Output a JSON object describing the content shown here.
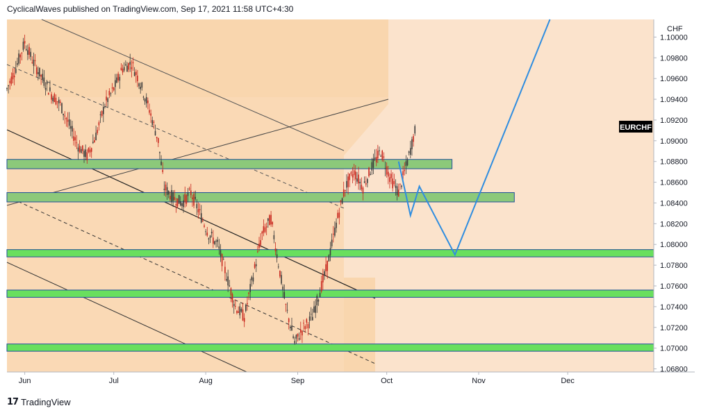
{
  "header": {
    "text": "CyclicalWaves published on TradingView.com, Sep 17, 2021 11:58 UTC+4:30"
  },
  "footer": {
    "logo": "17",
    "brand": "TradingView"
  },
  "colors": {
    "background": "#fbe3cc",
    "channel_fill": "#f9d6ae",
    "zone_green": "#8cc97a",
    "zone_bright": "#69df5e",
    "zone_border": "#1f4f99",
    "projection": "#2e8de0",
    "candle_up": "#3a3a3a",
    "candle_down": "#c8251c",
    "label_bg": "#000000"
  },
  "chart_data": {
    "type": "candlestick",
    "symbol": "EURCHF",
    "currency": "CHF",
    "x_ticks": [
      "Jun",
      "Jul",
      "Aug",
      "Sep",
      "Oct",
      "Nov",
      "Dec"
    ],
    "y_ticks": [
      "1.10000",
      "1.09800",
      "1.09600",
      "1.09400",
      "1.09200",
      "1.09000",
      "1.08800",
      "1.08600",
      "1.08400",
      "1.08200",
      "1.08000",
      "1.07800",
      "1.07600",
      "1.07400",
      "1.07200",
      "1.07000",
      "1.06800"
    ],
    "ylim": [
      1.0677,
      1.1017
    ],
    "xlim": [
      "2021-05-26",
      "2021-12-30"
    ],
    "price_path": [
      [
        "2021-05-26",
        1.095
      ],
      [
        "2021-05-29",
        1.097
      ],
      [
        "2021-06-01",
        1.0995
      ],
      [
        "2021-06-04",
        1.0975
      ],
      [
        "2021-06-07",
        1.096
      ],
      [
        "2021-06-10",
        1.0945
      ],
      [
        "2021-06-13",
        1.0935
      ],
      [
        "2021-06-16",
        1.0915
      ],
      [
        "2021-06-19",
        1.0895
      ],
      [
        "2021-06-22",
        1.0885
      ],
      [
        "2021-06-25",
        1.0905
      ],
      [
        "2021-06-28",
        1.0935
      ],
      [
        "2021-07-01",
        1.095
      ],
      [
        "2021-07-04",
        1.097
      ],
      [
        "2021-07-07",
        1.0975
      ],
      [
        "2021-07-10",
        1.0955
      ],
      [
        "2021-07-13",
        1.093
      ],
      [
        "2021-07-16",
        1.09
      ],
      [
        "2021-07-18",
        1.0855
      ],
      [
        "2021-07-21",
        1.0845
      ],
      [
        "2021-07-24",
        1.084
      ],
      [
        "2021-07-27",
        1.085
      ],
      [
        "2021-07-30",
        1.083
      ],
      [
        "2021-08-02",
        1.081
      ],
      [
        "2021-08-05",
        1.08
      ],
      [
        "2021-08-08",
        1.077
      ],
      [
        "2021-08-11",
        1.074
      ],
      [
        "2021-08-14",
        1.073
      ],
      [
        "2021-08-17",
        1.077
      ],
      [
        "2021-08-20",
        1.081
      ],
      [
        "2021-08-23",
        1.0825
      ],
      [
        "2021-08-25",
        1.079
      ],
      [
        "2021-08-28",
        1.074
      ],
      [
        "2021-08-31",
        1.0705
      ],
      [
        "2021-09-03",
        1.072
      ],
      [
        "2021-09-06",
        1.073
      ],
      [
        "2021-09-09",
        1.076
      ],
      [
        "2021-09-11",
        1.078
      ],
      [
        "2021-09-14",
        1.082
      ],
      [
        "2021-09-17",
        1.0855
      ],
      [
        "2021-09-20",
        1.087
      ],
      [
        "2021-09-23",
        1.0855
      ],
      [
        "2021-09-26",
        1.0875
      ],
      [
        "2021-09-29",
        1.089
      ],
      [
        "2021-10-02",
        1.0865
      ],
      [
        "2021-10-05",
        1.085
      ],
      [
        "2021-10-08",
        1.088
      ],
      [
        "2021-10-11",
        1.0915
      ]
    ],
    "zones": [
      {
        "from": 1.0873,
        "to": 1.0882,
        "start": "2021-05-26",
        "end": "2021-10-23",
        "style": "zone_green"
      },
      {
        "from": 1.0841,
        "to": 1.085,
        "start": "2021-05-26",
        "end": "2021-11-13",
        "style": "zone_green"
      },
      {
        "from": 1.0788,
        "to": 1.0795,
        "start": "2021-05-26",
        "end": "2021-12-30",
        "style": "zone_bright"
      },
      {
        "from": 1.0749,
        "to": 1.0756,
        "start": "2021-05-26",
        "end": "2021-12-30",
        "style": "zone_bright"
      },
      {
        "from": 1.0697,
        "to": 1.0704,
        "start": "2021-05-26",
        "end": "2021-12-30",
        "style": "zone_bright"
      }
    ],
    "projection": [
      [
        "2021-10-05",
        1.088
      ],
      [
        "2021-10-09",
        1.0828
      ],
      [
        "2021-10-12",
        1.0856
      ],
      [
        "2021-10-24",
        1.079
      ],
      [
        "2021-11-25",
        1.1017
      ]
    ],
    "last_price_label": "EURCHF"
  }
}
